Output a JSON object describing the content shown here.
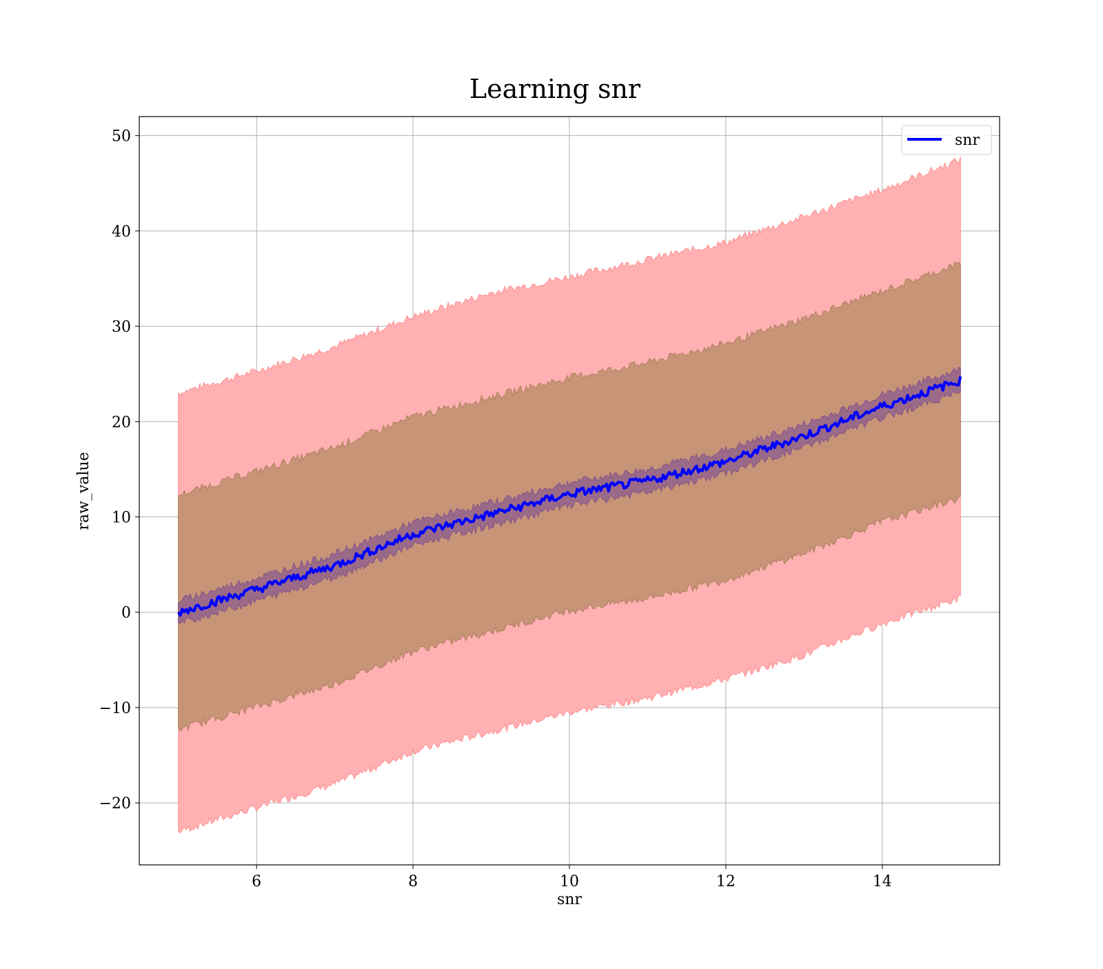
{
  "chart_data": {
    "type": "line",
    "title": "Learning snr",
    "xlabel": "snr",
    "ylabel": "raw_value",
    "xlim": [
      4.5,
      15.5
    ],
    "ylim": [
      -26.5,
      52
    ],
    "x_ticks": [
      6,
      8,
      10,
      12,
      14
    ],
    "x_tick_labels": [
      "6",
      "8",
      "10",
      "12",
      "14"
    ],
    "y_ticks": [
      -20,
      -10,
      0,
      10,
      20,
      30,
      40,
      50
    ],
    "y_tick_labels": [
      "−20",
      "−10",
      "0",
      "10",
      "20",
      "30",
      "40",
      "50"
    ],
    "grid": true,
    "legend": {
      "placement": "top-right",
      "entries": [
        "snr"
      ]
    },
    "x": [
      5,
      6,
      7,
      8,
      9,
      10,
      11,
      12,
      13,
      14,
      15
    ],
    "series": [
      {
        "name": "snr",
        "color": "#0000ff",
        "values": [
          0,
          2.4,
          4.9,
          8.2,
          10.3,
          12.4,
          13.8,
          15.8,
          18.5,
          21.6,
          24.3
        ]
      }
    ],
    "bands": [
      {
        "color": "#ff8080",
        "fill": "#ffb0b2",
        "upper": [
          23,
          25.3,
          27.9,
          31,
          33.5,
          35.2,
          37,
          38.8,
          41.5,
          44.3,
          47.5
        ],
        "lower": [
          -23,
          -20.5,
          -18,
          -14.6,
          -12.5,
          -10.5,
          -9,
          -7,
          -4.5,
          -1.2,
          1.5
        ]
      },
      {
        "color": "#a07850",
        "fill": "#c89478",
        "upper": [
          12.3,
          14.8,
          17.3,
          20.5,
          22.6,
          24.6,
          26.2,
          28.2,
          30.8,
          33.7,
          36.6
        ],
        "lower": [
          -12.3,
          -9.9,
          -7.5,
          -4.1,
          -2,
          0.2,
          1.5,
          3.4,
          6.2,
          9.5,
          12
        ]
      },
      {
        "color": "#7a4a8a",
        "fill": "#9a6a88",
        "upper": [
          1.2,
          3.6,
          6.1,
          9.4,
          11.5,
          13.6,
          15,
          17,
          19.7,
          22.8,
          25.5
        ],
        "lower": [
          -1.2,
          1.2,
          3.7,
          7,
          9.1,
          11.2,
          12.6,
          14.6,
          17.3,
          20.4,
          23.1
        ]
      }
    ]
  }
}
